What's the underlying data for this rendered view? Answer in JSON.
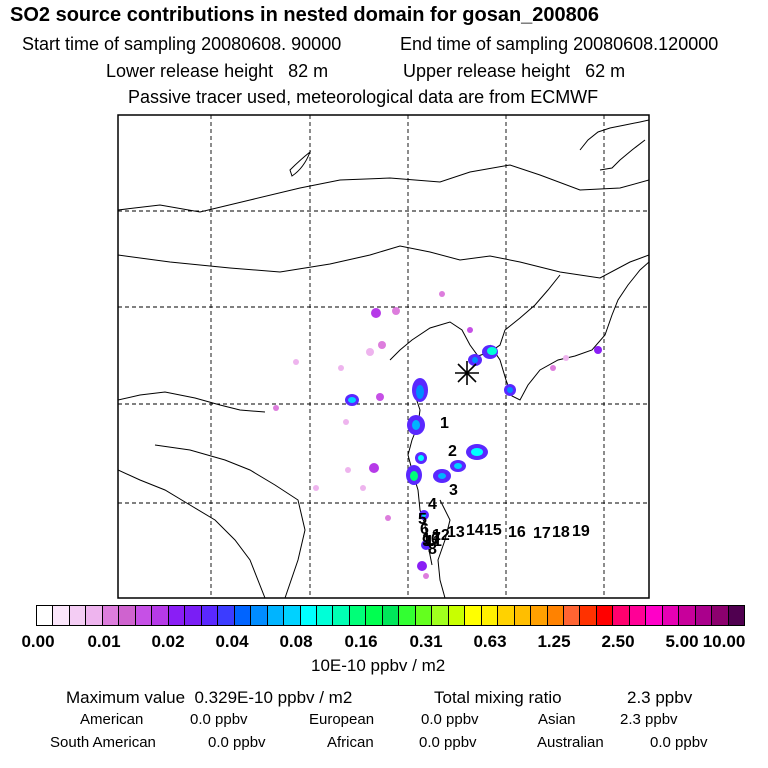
{
  "header": {
    "title": "SO2 source contributions in nested domain for gosan_200806",
    "start_label": "Start time of sampling 20080608. 90000",
    "end_label": "End time of sampling 20080608.120000",
    "lower_label": "Lower release height   82 m",
    "upper_label": "Upper release height   62 m",
    "info": "Passive tracer used, meteorological data are from ECMWF"
  },
  "map": {
    "marker_labels": [
      "1",
      "2",
      "3",
      "4",
      "5",
      "6",
      "7",
      "8",
      "9",
      "10",
      "11",
      "12",
      "13",
      "14",
      "15",
      "16",
      "17",
      "18",
      "19"
    ],
    "receptor_icon": "asterisk-icon"
  },
  "colorbar": {
    "colors": [
      "#ffffff",
      "#fbe6fb",
      "#f4cdf4",
      "#eeb4ee",
      "#dd7ddd",
      "#cf63cf",
      "#c650e6",
      "#b63ae8",
      "#8a1ef5",
      "#7a1ef5",
      "#5a28ff",
      "#3c3cff",
      "#0064ff",
      "#008cff",
      "#00b4ff",
      "#00d2ff",
      "#00ffff",
      "#00ffd7",
      "#00ffb4",
      "#00ff78",
      "#00ff50",
      "#00e65a",
      "#32ff32",
      "#64ff1e",
      "#a0ff1e",
      "#c8ff00",
      "#ffff00",
      "#fff000",
      "#ffd200",
      "#ffbe00",
      "#ffa000",
      "#ff8200",
      "#ff6432",
      "#ff3200",
      "#ff0000",
      "#ff006e",
      "#ff0096",
      "#ff00c8",
      "#e600b4",
      "#c8009b",
      "#aa008c",
      "#8c006e",
      "#500050"
    ],
    "tick_labels": [
      "0.00",
      "0.01",
      "0.02",
      "0.04",
      "0.08",
      "0.16",
      "0.31",
      "0.63",
      "1.25",
      "2.50",
      "5.00",
      "10.00"
    ],
    "unit": "10E-10 ppbv / m2"
  },
  "summary": {
    "max_label": "Maximum value  0.329E-10 ppbv / m2",
    "total_label": "Total mixing ratio",
    "total_value": "2.3 ppbv",
    "regions": [
      {
        "name": "American",
        "value": "0.0 ppbv"
      },
      {
        "name": "European",
        "value": "0.0 ppbv"
      },
      {
        "name": "Asian",
        "value": "2.3 ppbv"
      },
      {
        "name": "South American",
        "value": "0.0 ppbv"
      },
      {
        "name": "African",
        "value": "0.0 ppbv"
      },
      {
        "name": "Australian",
        "value": "0.0 ppbv"
      }
    ]
  }
}
